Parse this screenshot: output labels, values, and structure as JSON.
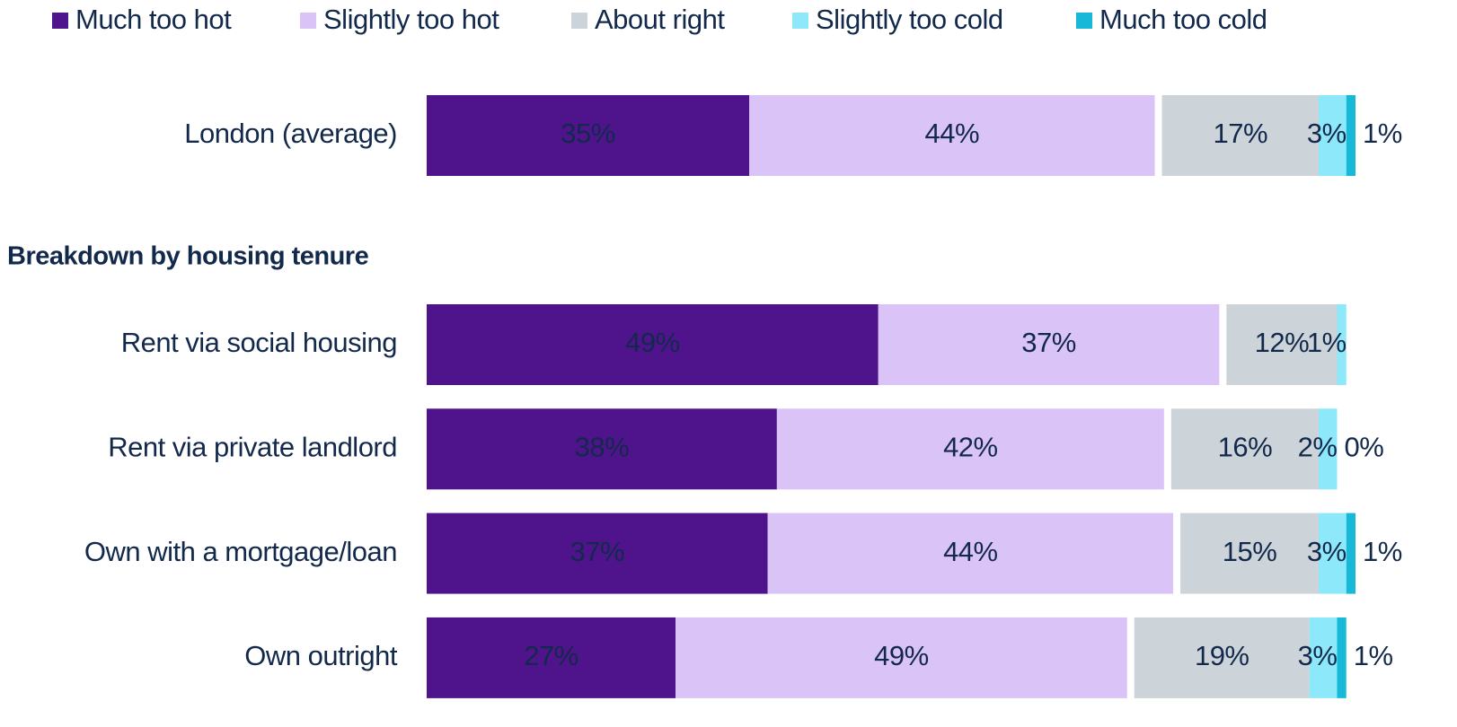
{
  "chart_data": {
    "type": "stacked_bar_horizontal",
    "section_title": "Breakdown by housing tenure",
    "categories": [
      "London (average)",
      "Rent via social housing",
      "Rent via private landlord",
      "Own with a mortgage/loan",
      "Own outright"
    ],
    "series": [
      {
        "name": "Much too hot",
        "color": "#4f148c",
        "values": [
          35,
          49,
          38,
          37,
          27
        ],
        "value_labels": [
          "35%",
          "49%",
          "38%",
          "37%",
          "27%"
        ]
      },
      {
        "name": "Slightly too hot",
        "color": "#dac3f7",
        "values": [
          44,
          37,
          42,
          44,
          49
        ],
        "value_labels": [
          "44%",
          "37%",
          "42%",
          "44%",
          "49%"
        ]
      },
      {
        "name": "About right",
        "color": "#ccd4d9",
        "values": [
          17,
          12,
          16,
          15,
          19
        ],
        "value_labels": [
          "17%",
          "12%",
          "16%",
          "15%",
          "19%"
        ]
      },
      {
        "name": "Slightly too cold",
        "color": "#8de8fa",
        "values": [
          3,
          1,
          2,
          3,
          3
        ],
        "value_labels": [
          "3%",
          "1%",
          "2%",
          "3%",
          "3%"
        ]
      },
      {
        "name": "Much too cold",
        "color": "#18b8d8",
        "values": [
          1,
          null,
          0,
          1,
          1
        ],
        "value_labels": [
          "1%",
          null,
          "0%",
          "1%",
          "1%"
        ]
      }
    ],
    "legend": "top"
  }
}
